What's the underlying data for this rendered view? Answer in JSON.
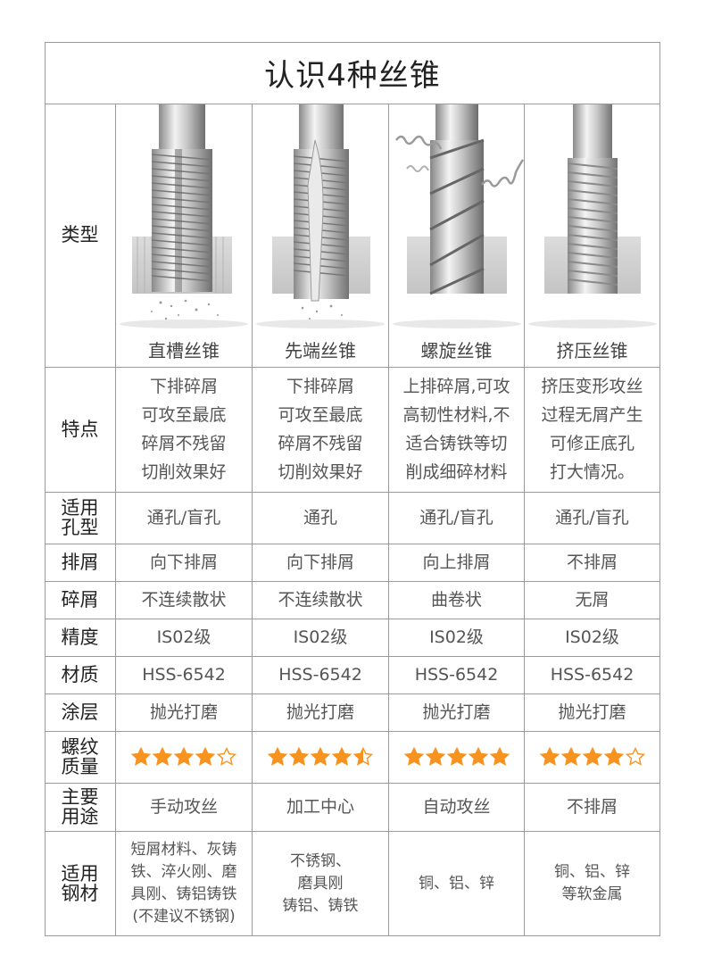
{
  "title": "认识4种丝锥",
  "row_labels": {
    "type": "类型",
    "feature": "特点",
    "hole": "适用孔型",
    "chip_dir": "排屑",
    "chip_shape": "碎屑",
    "precision": "精度",
    "material": "材质",
    "coating": "涂层",
    "quality": "螺纹质量",
    "use": "主要用途",
    "steel": "适用钢材"
  },
  "columns": [
    {
      "name": "直槽丝锥",
      "feature": [
        "下排碎屑",
        "可攻至最底",
        "碎屑不残留",
        "切削效果好"
      ],
      "hole": "通孔/盲孔",
      "chip_dir": "向下排屑",
      "chip_shape": "不连续散状",
      "precision": "IS02级",
      "material": "HSS-6542",
      "coating": "抛光打磨",
      "quality": 4,
      "use": "手动攻丝",
      "steel": [
        "短屑材料、灰铸",
        "铁、淬火刚、磨",
        "具刚、铸铝铸铁",
        "(不建议不锈钢)"
      ]
    },
    {
      "name": "先端丝锥",
      "feature": [
        "下排碎屑",
        "可攻至最底",
        "碎屑不残留",
        "切削效果好"
      ],
      "hole": "通孔",
      "chip_dir": "向下排屑",
      "chip_shape": "不连续散状",
      "precision": "IS02级",
      "material": "HSS-6542",
      "coating": "抛光打磨",
      "quality": 4.5,
      "use": "加工中心",
      "steel": [
        "不锈钢、",
        "磨具刚",
        "铸铝、铸铁"
      ]
    },
    {
      "name": "螺旋丝锥",
      "feature": [
        "上排碎屑,可攻",
        "高韧性材料,不",
        "适合铸铁等切",
        "削成细碎材料"
      ],
      "hole": "通孔/盲孔",
      "chip_dir": "向上排屑",
      "chip_shape": "曲卷状",
      "precision": "IS02级",
      "material": "HSS-6542",
      "coating": "抛光打磨",
      "quality": 5,
      "use": "自动攻丝",
      "steel": [
        "铜、铝、锌"
      ]
    },
    {
      "name": "挤压丝锥",
      "feature": [
        "挤压变形攻丝",
        "过程无屑产生",
        "可修正底孔",
        "打大情况。"
      ],
      "hole": "通孔/盲孔",
      "chip_dir": "不排屑",
      "chip_shape": "无屑",
      "precision": "IS02级",
      "material": "HSS-6542",
      "coating": "抛光打磨",
      "quality": 4,
      "use": "不排屑",
      "steel": [
        "铜、铝、锌",
        "等软金属"
      ]
    }
  ],
  "colors": {
    "star": "#f7931e",
    "border": "#9a9a9a"
  },
  "icons": {
    "star": "star-icon",
    "tap": "tap-illustration"
  }
}
